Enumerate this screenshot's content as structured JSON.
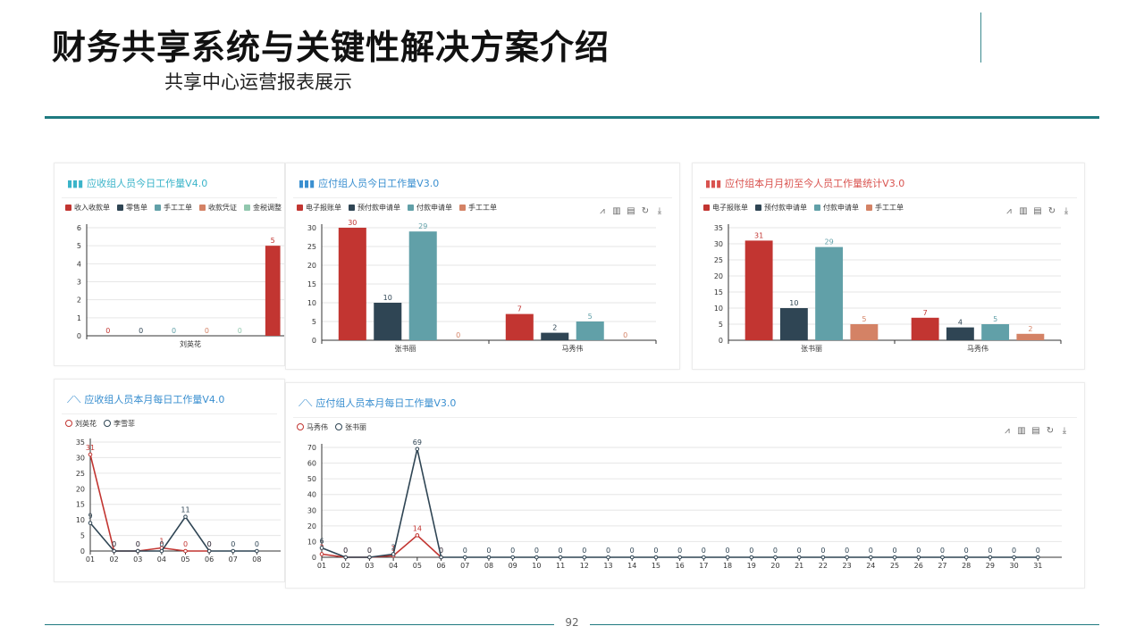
{
  "page": {
    "title": "财务共享系统与关键性解决方案介绍",
    "subtitle": "共享中心运营报表展示",
    "page_number": "92",
    "toolbar_icons": [
      "line-chart-icon",
      "bar-chart-icon",
      "data-view-icon",
      "restore-icon",
      "download-icon"
    ]
  },
  "chart_data": [
    {
      "id": "ar_today",
      "type": "bar",
      "title": "应收组人员今日工作量V4.0",
      "title_color": "#3bb4c9",
      "categories": [
        "刘英花"
      ],
      "series": [
        {
          "name": "收入收款单",
          "color": "#c23531",
          "values": [
            0
          ]
        },
        {
          "name": "零售单",
          "color": "#2f4554",
          "values": [
            0
          ]
        },
        {
          "name": "手工工单",
          "color": "#61a0a8",
          "values": [
            0
          ]
        },
        {
          "name": "收款凭证",
          "color": "#d48265",
          "values": [
            0
          ]
        },
        {
          "name": "金税调整",
          "color": "#91c7ae",
          "values": [
            0
          ]
        },
        {
          "name": "",
          "color": "#c23531",
          "values": [
            5
          ]
        }
      ],
      "ylim": [
        0,
        6
      ],
      "yticks": [
        0,
        1,
        2,
        3,
        4,
        5,
        6
      ]
    },
    {
      "id": "ap_today",
      "type": "bar",
      "title": "应付组人员今日工作量V3.0",
      "title_color": "#3a8fd0",
      "categories": [
        "张书丽",
        "马秀伟"
      ],
      "series": [
        {
          "name": "电子报账单",
          "color": "#c23531",
          "values": [
            30,
            7
          ]
        },
        {
          "name": "预付款申请单",
          "color": "#2f4554",
          "values": [
            10,
            2
          ]
        },
        {
          "name": "付款申请单",
          "color": "#61a0a8",
          "values": [
            29,
            5
          ]
        },
        {
          "name": "手工工单",
          "color": "#d48265",
          "values": [
            0,
            0
          ]
        }
      ],
      "ylim": [
        0,
        30
      ],
      "yticks": [
        0,
        5,
        10,
        15,
        20,
        25,
        30
      ]
    },
    {
      "id": "ap_month_total",
      "type": "bar",
      "title": "应付组本月月初至今人员工作量统计V3.0",
      "title_color": "#d9534f",
      "categories": [
        "张书丽",
        "马秀伟"
      ],
      "series": [
        {
          "name": "电子报账单",
          "color": "#c23531",
          "values": [
            31,
            7
          ]
        },
        {
          "name": "预付款申请单",
          "color": "#2f4554",
          "values": [
            10,
            4
          ]
        },
        {
          "name": "付款申请单",
          "color": "#61a0a8",
          "values": [
            29,
            5
          ]
        },
        {
          "name": "手工工单",
          "color": "#d48265",
          "values": [
            5,
            2
          ]
        }
      ],
      "ylim": [
        0,
        35
      ],
      "yticks": [
        0,
        5,
        10,
        15,
        20,
        25,
        30,
        35
      ]
    },
    {
      "id": "ar_daily",
      "type": "line",
      "title": "应收组人员本月每日工作量V4.0",
      "title_color": "#3a8fd0",
      "x": [
        "01",
        "02",
        "03",
        "04",
        "05",
        "06",
        "07",
        "08"
      ],
      "series": [
        {
          "name": "刘英花",
          "color": "#c23531",
          "values": [
            31,
            0,
            0,
            1,
            0,
            0,
            null,
            null
          ]
        },
        {
          "name": "李雪菲",
          "color": "#2f4554",
          "values": [
            9,
            0,
            0,
            0,
            11,
            0,
            0,
            0
          ]
        }
      ],
      "ylim": [
        0,
        35
      ],
      "yticks": [
        0,
        5,
        10,
        15,
        20,
        25,
        30,
        35
      ]
    },
    {
      "id": "ap_daily",
      "type": "line",
      "title": "应付组人员本月每日工作量V3.0",
      "title_color": "#3a8fd0",
      "x": [
        "01",
        "02",
        "03",
        "04",
        "05",
        "06",
        "07",
        "08",
        "09",
        "10",
        "11",
        "12",
        "13",
        "14",
        "15",
        "16",
        "17",
        "18",
        "19",
        "20",
        "21",
        "22",
        "23",
        "24",
        "25",
        "26",
        "27",
        "28",
        "29",
        "30",
        "31"
      ],
      "series": [
        {
          "name": "马秀伟",
          "color": "#c23531",
          "values": [
            2,
            0,
            0,
            1,
            14,
            0,
            null,
            null,
            null,
            null,
            null,
            null,
            null,
            null,
            null,
            null,
            null,
            null,
            null,
            null,
            null,
            null,
            null,
            null,
            null,
            null,
            null,
            null,
            null,
            null,
            null
          ]
        },
        {
          "name": "张书丽",
          "color": "#2f4554",
          "values": [
            6,
            0,
            0,
            2,
            69,
            0,
            0,
            0,
            0,
            0,
            0,
            0,
            0,
            0,
            0,
            0,
            0,
            0,
            0,
            0,
            0,
            0,
            0,
            0,
            0,
            0,
            0,
            0,
            0,
            0,
            0
          ]
        }
      ],
      "ylim": [
        0,
        70
      ],
      "yticks": [
        0,
        10,
        20,
        30,
        40,
        50,
        60,
        70
      ]
    }
  ]
}
